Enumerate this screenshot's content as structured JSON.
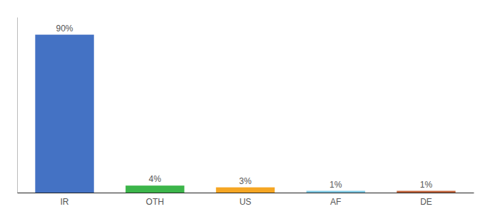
{
  "chart_data": {
    "type": "bar",
    "categories": [
      "IR",
      "OTH",
      "US",
      "AF",
      "DE"
    ],
    "values": [
      90,
      4,
      3,
      1,
      1
    ],
    "value_labels": [
      "90%",
      "4%",
      "3%",
      "1%",
      "1%"
    ],
    "colors": [
      "#4472c4",
      "#3cb54a",
      "#f5a623",
      "#7ec8e3",
      "#c0623a"
    ],
    "ylim": [
      0,
      100
    ],
    "grid": false,
    "data_labels": true,
    "tick_labels": "x"
  }
}
